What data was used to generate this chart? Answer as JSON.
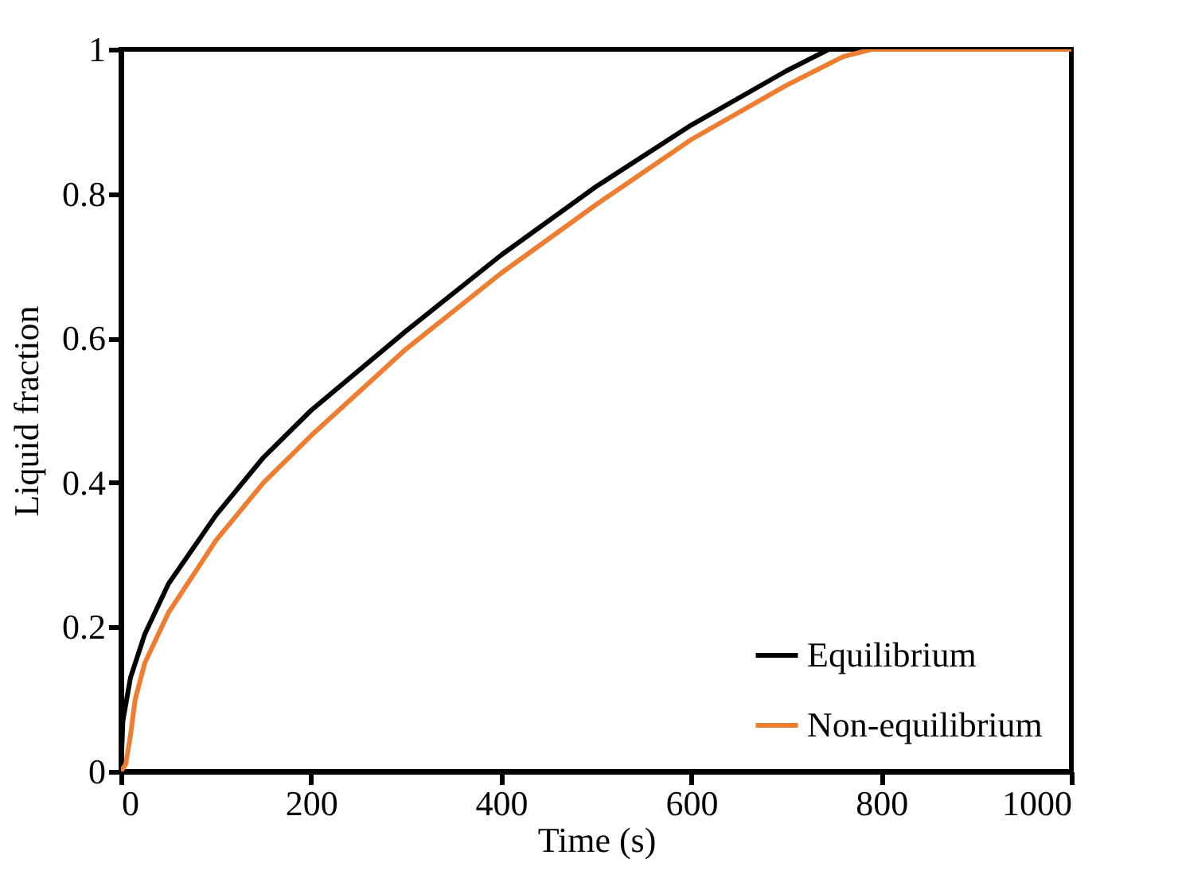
{
  "chart_data": {
    "type": "line",
    "xlabel": "Time  (s)",
    "ylabel": "Liquid fraction",
    "xlim": [
      0,
      1000
    ],
    "ylim": [
      0,
      1
    ],
    "xticks": [
      0,
      200,
      400,
      600,
      800,
      1000
    ],
    "yticks": [
      0,
      0.2,
      0.4,
      0.6,
      0.8,
      1
    ],
    "grid": false,
    "legend": "bottom right",
    "marker": "none",
    "line_style": "solid",
    "series": [
      {
        "name": "Equilibrium",
        "color": "#000000",
        "x": [
          0,
          2,
          10,
          25,
          50,
          100,
          150,
          200,
          300,
          400,
          500,
          600,
          700,
          745,
          1000
        ],
        "values": [
          0,
          0.07,
          0.13,
          0.19,
          0.26,
          0.355,
          0.435,
          0.5,
          0.61,
          0.715,
          0.81,
          0.895,
          0.97,
          1,
          1
        ]
      },
      {
        "name": "Non-equilibrium",
        "color": "#ed7d31",
        "x": [
          0,
          5,
          10,
          15,
          25,
          50,
          100,
          150,
          200,
          300,
          400,
          500,
          600,
          700,
          760,
          790,
          1000
        ],
        "values": [
          0,
          0.01,
          0.05,
          0.1,
          0.15,
          0.22,
          0.32,
          0.4,
          0.465,
          0.585,
          0.69,
          0.785,
          0.875,
          0.95,
          0.99,
          1,
          1
        ]
      }
    ]
  }
}
